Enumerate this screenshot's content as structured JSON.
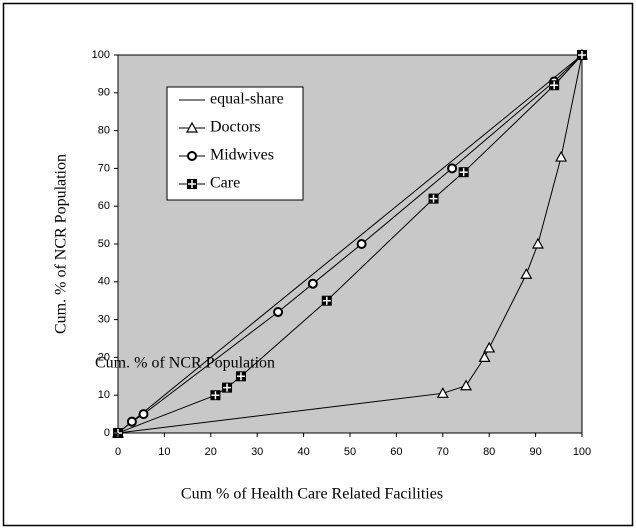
{
  "chart_data": {
    "type": "line",
    "x_label": "Cum % of Health Care Related Facilities",
    "y_label": "Cum. % of NCR Population",
    "annotation": "Cum. % of NCR Population",
    "series": [
      {
        "name": "equal-share",
        "color": "#000000",
        "marker": "none",
        "x": [
          0,
          100
        ],
        "values": [
          0,
          100
        ]
      },
      {
        "name": "Doctors",
        "color": "#000000",
        "marker": "triangle",
        "x": [
          0,
          70,
          75,
          79,
          80,
          88,
          90.5,
          95.5,
          100
        ],
        "values": [
          0,
          10.5,
          12.5,
          20,
          22.5,
          42,
          50,
          73,
          100
        ]
      },
      {
        "name": "Midwives",
        "color": "#000000",
        "marker": "circle",
        "x": [
          0,
          3,
          5.5,
          34.5,
          42,
          52.5,
          72,
          94,
          100
        ],
        "values": [
          0,
          3,
          5,
          32,
          39.5,
          50,
          70,
          93,
          100
        ]
      },
      {
        "name": "Care",
        "color": "#000000",
        "marker": "square",
        "x": [
          0,
          21,
          23.5,
          26.5,
          45,
          68,
          74.5,
          94,
          100
        ],
        "values": [
          0,
          10,
          12,
          15,
          35,
          62,
          69,
          92,
          100
        ]
      }
    ],
    "xlim": [
      0,
      100
    ],
    "xticks": [
      0,
      10,
      20,
      30,
      40,
      50,
      60,
      70,
      80,
      90,
      100
    ],
    "ylim": [
      0,
      100
    ],
    "yticks": [
      0,
      10,
      20,
      30,
      40,
      50,
      60,
      70,
      80,
      90,
      100
    ],
    "plot_background": "#c8c8c8",
    "legend": "upper-left"
  }
}
